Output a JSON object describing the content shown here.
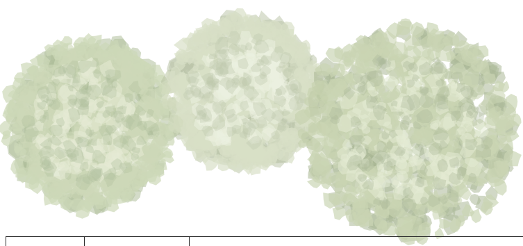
{
  "scene": {
    "canopies": [
      {
        "name": "left",
        "fill": "#c9d6b2",
        "shade": "#a9b994",
        "light": "#e3ead2"
      },
      {
        "name": "middle",
        "fill": "#d3dcbf",
        "shade": "#b4c0a1",
        "light": "#e9eedd"
      },
      {
        "name": "right",
        "fill": "#c6d2ae",
        "shade": "#a4b38e",
        "light": "#e1e9cf"
      }
    ],
    "line_color": "#2a2a2a",
    "background": "#ffffff"
  }
}
